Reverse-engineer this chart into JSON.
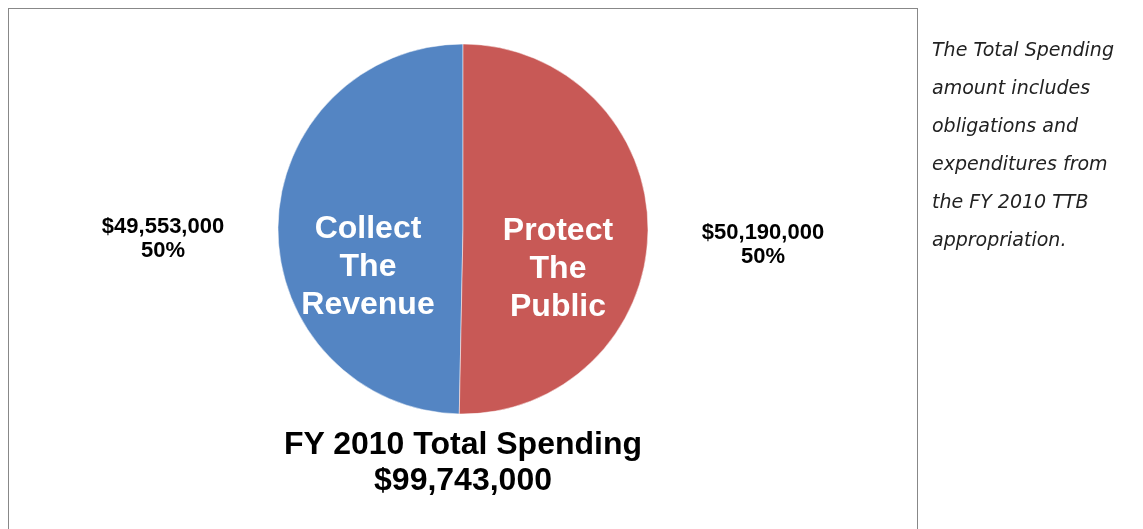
{
  "chart_data": {
    "type": "pie",
    "title": "FY 2010 Total Spending",
    "subtitle": "$99,743,000",
    "categories": [
      "Collect The Revenue",
      "Protect The Public"
    ],
    "values": [
      49553000,
      50190000
    ],
    "colors": [
      "#5485c3",
      "#c85956"
    ],
    "value_labels": [
      "$49,553,000\n50%",
      "$50,190,000\n50%"
    ],
    "annotations": [
      "The Total Spending amount includes obligations and expenditures from the FY 2010 TTB appropriation."
    ]
  }
}
